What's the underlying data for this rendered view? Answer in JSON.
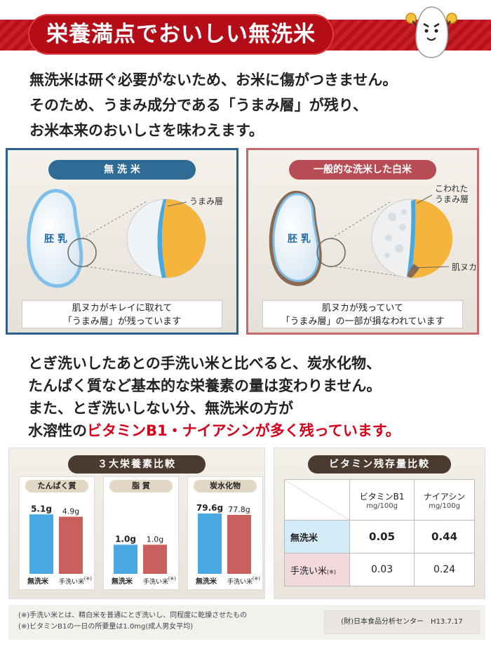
{
  "banner": {
    "title": "栄養満点でおいしい無洗米"
  },
  "intro": {
    "lines": [
      "無洗米は研ぐ必要がないため、お米に傷がつきません。",
      "そのため、うまみ成分である「うまみ層」が残り、",
      "お米本来のおいしさを味わえます。"
    ]
  },
  "panel_left": {
    "title": "無 洗 米",
    "grain_label": "胚 乳",
    "annotation": "うまみ層",
    "caption_lines": [
      "肌ヌカがキレイに取れて",
      "「うまみ層」が残っています"
    ]
  },
  "panel_right": {
    "title": "一般的な洗米した白米",
    "grain_label": "胚 乳",
    "annotation_top_lines": [
      "こわれた",
      "うまみ層"
    ],
    "annotation_bottom": "肌ヌカ",
    "caption_lines": [
      "肌ヌカが残っていて",
      "「うまみ層」の一部が損なわれています"
    ]
  },
  "body2": {
    "line1": "とぎ洗いしたあとの手洗い米と比べると、炭水化物、",
    "line2": "たんぱく質など基本的な栄養素の量は変わりません。",
    "line3": "また、とぎ洗いしない分、無洗米の方が",
    "line4_prefix": "水溶性の",
    "line4_highlight": "ビタミンB1・ナイアシンが多く残っています。"
  },
  "nutrients": {
    "title": "３大栄養素比較",
    "x_label_musenmai": "無洗米",
    "x_label_tearai": "手洗い米",
    "footnote_mark": "(※)",
    "charts": [
      {
        "label": "たんぱく質",
        "musenmai": 5.1,
        "tearai": 4.9,
        "musenmai_text": "5.1g",
        "tearai_text": "4.9g",
        "max": 6.5
      },
      {
        "label": "脂 質",
        "musenmai": 1.0,
        "tearai": 1.0,
        "musenmai_text": "1.0g",
        "tearai_text": "1.0g",
        "max": 2.6
      },
      {
        "label": "炭水化物",
        "musenmai": 79.6,
        "tearai": 77.8,
        "musenmai_text": "79.6g",
        "tearai_text": "77.8g",
        "max": 100
      }
    ]
  },
  "vitamin": {
    "title": "ビタミン残存量比較",
    "col1_name": "ビタミンB1",
    "col1_unit": "mg/100g",
    "col2_name": "ナイアシン",
    "col2_unit": "mg/100g",
    "row1_label": "無洗米",
    "row1_b1": "0.05",
    "row1_niacin": "0.44",
    "row2_label": "手洗い米",
    "row2_mark": "(※)",
    "row2_b1": "0.03",
    "row2_niacin": "0.24"
  },
  "footer": {
    "note1": "(※)手洗い米とは、精白米を普通にとぎ洗いし、同程度に乾燥させたもの",
    "note2": "(※)ビタミンB1の一日の所要量は1.0mg(成人男女平均)",
    "source": "(財)日本食品分析センター　H13.7.17"
  },
  "colors": {
    "banner_red": "#c4121d",
    "musenmai_blue": "#4aa8e0",
    "tearai_red": "#c9605e",
    "umami_yellow": "#f5b53c",
    "row_blue": "#d4ecf7",
    "row_pink": "#f3d9de"
  }
}
